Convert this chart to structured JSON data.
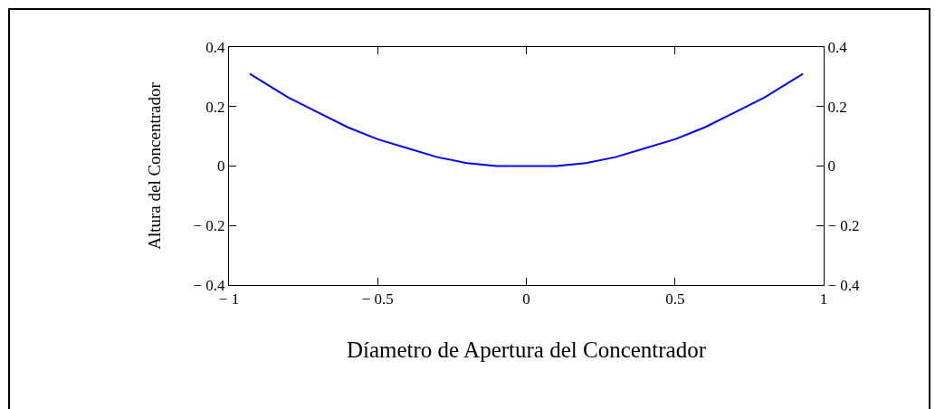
{
  "chart_data": {
    "type": "line",
    "xlabel": "Díametro de Apertura del Concentrador",
    "ylabel": "Altura del Concentrador",
    "x": [
      -0.93,
      -0.8,
      -0.7,
      -0.6,
      -0.5,
      -0.4,
      -0.3,
      -0.2,
      -0.1,
      0,
      0.1,
      0.2,
      0.3,
      0.4,
      0.5,
      0.6,
      0.7,
      0.8,
      0.93
    ],
    "series": [
      {
        "color": "#0000ff",
        "values": [
          0.31,
          0.23,
          0.18,
          0.13,
          0.09,
          0.06,
          0.03,
          0.01,
          0,
          0,
          0,
          0.01,
          0.03,
          0.06,
          0.09,
          0.13,
          0.18,
          0.23,
          0.31
        ]
      }
    ],
    "xlim": [
      -1,
      1
    ],
    "xticks": [
      {
        "value": -1,
        "label": "− 1"
      },
      {
        "value": -0.5,
        "label": "− 0.5"
      },
      0,
      0.5,
      1
    ],
    "ylim": [
      -0.4,
      0.4
    ],
    "yticks": [
      {
        "value": -0.4,
        "label": "− 0.4"
      },
      {
        "value": -0.2,
        "label": "− 0.2"
      },
      0,
      0.2,
      0.4
    ],
    "y2lim": [
      -0.4,
      0.4
    ],
    "y2ticks": [
      {
        "value": -0.4,
        "label": "− 0.4"
      },
      {
        "value": -0.2,
        "label": "− 0.2"
      },
      0,
      0.2,
      0.4
    ],
    "grid": false,
    "marker": "none",
    "line_style": "solid"
  }
}
